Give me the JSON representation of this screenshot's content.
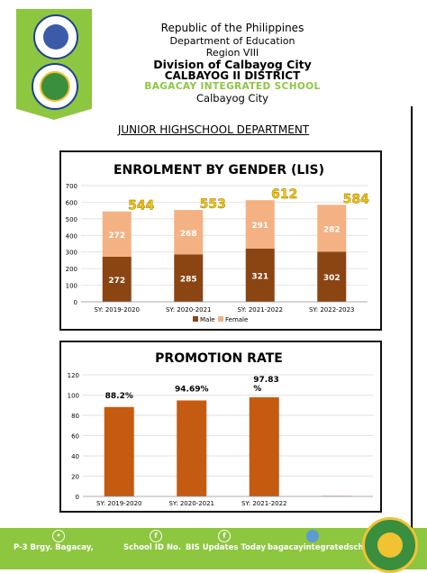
{
  "header": {
    "line1": "Republic of the Philippines",
    "line2": "Department of Education",
    "line3": "Region VIII",
    "line4": "Division of Calbayog City",
    "line5": "CALBAYOG II DISTRICT",
    "line6": "BAGACAY INTEGRATED SCHOOL",
    "line7": "Calbayog City"
  },
  "department": "JUNIOR HIGHSCHOOL DEPARTMENT",
  "colors": {
    "accent_green": "#8dc63f",
    "male": "#8b4513",
    "female": "#f4b183",
    "promotion": "#c55a11",
    "total_label": "#f5c400"
  },
  "chart_data": [
    {
      "type": "bar",
      "stacked": true,
      "title": "ENROLMENT BY GENDER (LIS)",
      "categories": [
        "SY: 2019-2020",
        "SY: 2020-2021",
        "SY: 2021-2022",
        "SY: 2022-2023"
      ],
      "series": [
        {
          "name": "Male",
          "values": [
            272,
            285,
            321,
            302
          ]
        },
        {
          "name": "Female",
          "values": [
            272,
            268,
            291,
            282
          ]
        }
      ],
      "totals": [
        544,
        553,
        612,
        584
      ],
      "ylim": [
        0,
        700
      ],
      "yticks": [
        0,
        100,
        200,
        300,
        400,
        500,
        600,
        700
      ],
      "legend": "bottom-left",
      "grid": true
    },
    {
      "type": "bar",
      "title": "PROMOTION RATE",
      "categories": [
        "SY: 2019-2020",
        "SY: 2020-2021",
        "SY: 2021-2022",
        ""
      ],
      "values": [
        88.2,
        94.69,
        97.83,
        0.5
      ],
      "data_labels": [
        "88.2%",
        "94.69%",
        "97.83 %",
        ""
      ],
      "ylim": [
        0,
        120
      ],
      "yticks": [
        0,
        20,
        40,
        60,
        80,
        100,
        120
      ],
      "grid": true
    }
  ],
  "footer": {
    "address": "P-3 Brgy. Bagacay,",
    "school_id": "School ID No.",
    "fb_page": "BIS Updates Today",
    "email": "bagacayintegratedsch"
  }
}
